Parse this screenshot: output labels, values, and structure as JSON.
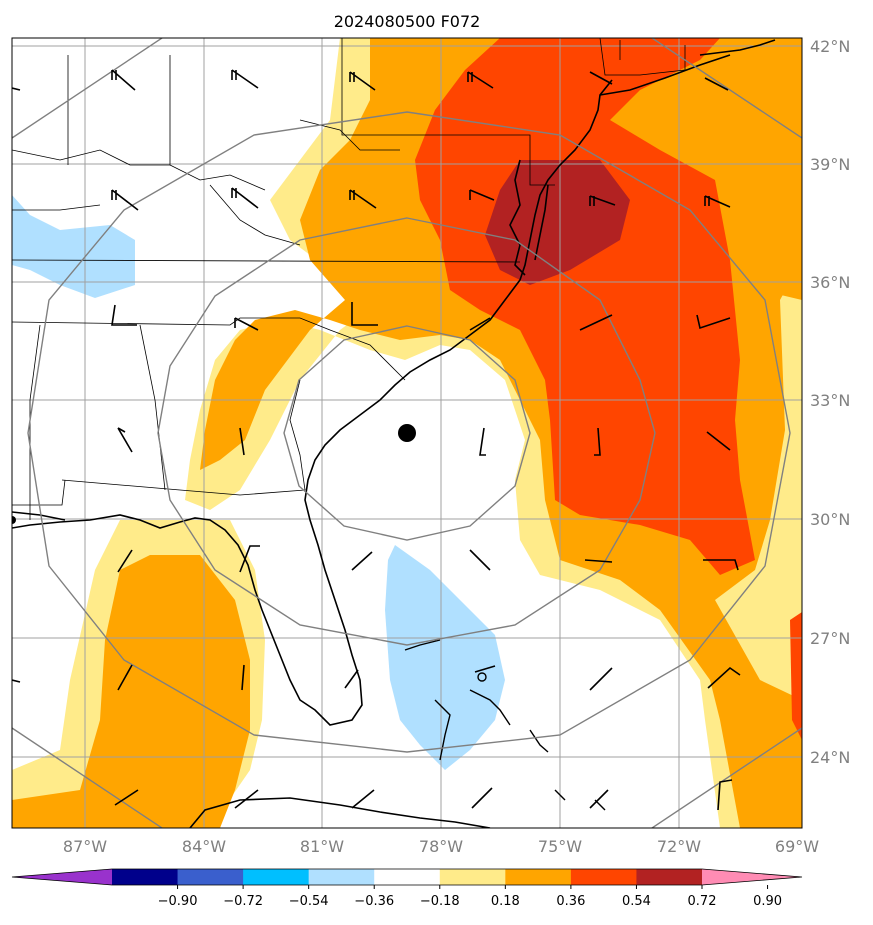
{
  "title": "2024080500 F072",
  "lat_labels": [
    "42°N",
    "39°N",
    "36°N",
    "33°N",
    "30°N",
    "27°N",
    "24°N"
  ],
  "lon_labels": [
    "87°W",
    "84°W",
    "81°W",
    "78°W",
    "75°W",
    "72°W",
    "69°W"
  ],
  "colorbar": {
    "ticks": [
      "−0.90",
      "−0.72",
      "−0.54",
      "−0.36",
      "−0.18",
      "0.18",
      "0.36",
      "0.54",
      "0.72",
      "0.90"
    ],
    "colors": [
      "#9932cc",
      "#00008b",
      "#3a5fcd",
      "#00bfff",
      "#b0e0ff",
      "#ffffff",
      "#ffeb8a",
      "#ffa500",
      "#ff4500",
      "#b22222",
      "#ff8cb4"
    ],
    "extend": "both"
  },
  "legend": {
    "fill_colors": {
      "pale_blue": "#b0e0ff",
      "yellow": "#ffeb8a",
      "orange": "#ffa500",
      "red_orange": "#ff4500",
      "dark_red": "#b22222"
    },
    "center_marker": "black-dot"
  }
}
